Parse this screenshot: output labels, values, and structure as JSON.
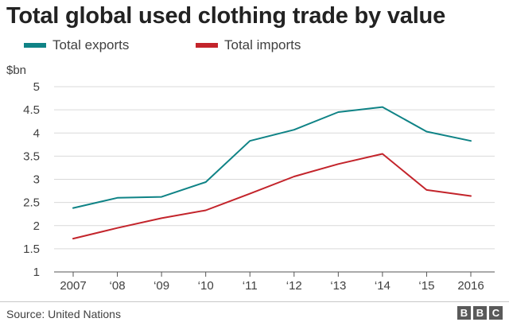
{
  "chart_data": {
    "type": "line",
    "title": "Total global used clothing trade by value",
    "ylabel": "$bn",
    "xlabel": "",
    "categories": [
      "2007",
      "‘08",
      "‘09",
      "‘10",
      "‘11",
      "‘12",
      "‘13",
      "‘14",
      "‘15",
      "2016"
    ],
    "series": [
      {
        "name": "Total exports",
        "color": "#0f8386",
        "values": [
          2.38,
          2.6,
          2.62,
          2.94,
          3.83,
          4.07,
          4.45,
          4.56,
          4.03,
          3.83
        ]
      },
      {
        "name": "Total imports",
        "color": "#c3242b",
        "values": [
          1.72,
          1.95,
          2.16,
          2.33,
          2.69,
          3.06,
          3.33,
          3.55,
          2.77,
          2.64
        ]
      }
    ],
    "yticks": [
      "1",
      "1.5",
      "2",
      "2.5",
      "3",
      "3.5",
      "4",
      "4.5",
      "5"
    ],
    "ylim": [
      1,
      5
    ],
    "grid": true,
    "legend_position": "top-left"
  },
  "footer": {
    "source": "Source: United Nations",
    "logo_letters": [
      "B",
      "B",
      "C"
    ]
  }
}
